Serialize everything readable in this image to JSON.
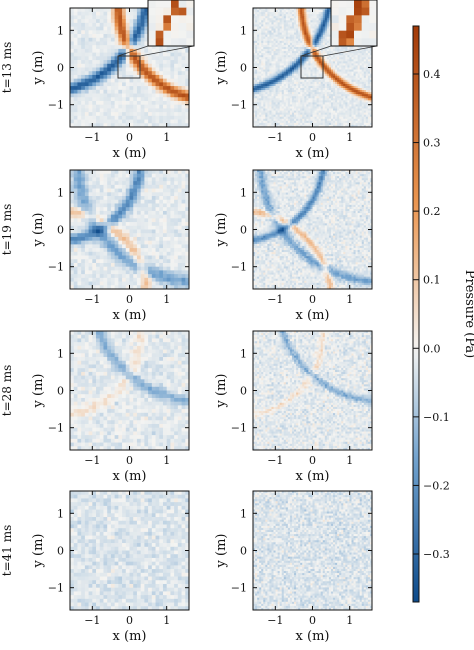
{
  "chart_data": {
    "type": "heatmap",
    "rows": [
      {
        "label": "t=13 ms",
        "inset": true
      },
      {
        "label": "t=19 ms",
        "inset": false
      },
      {
        "label": "t=28 ms",
        "inset": false
      },
      {
        "label": "t=41 ms",
        "inset": false
      }
    ],
    "columns": 2,
    "xlabel": "x (m)",
    "ylabel": "y (m)",
    "xlim": [
      -1.6,
      1.6
    ],
    "ylim": [
      -1.6,
      1.6
    ],
    "xticks": [
      -1,
      0,
      1
    ],
    "yticks": [
      1,
      0,
      -1
    ],
    "xtick_labels": [
      "−1",
      "0",
      "1"
    ],
    "ytick_labels": [
      "1",
      "0",
      "−1"
    ],
    "colorbar": {
      "label": "Pressure (Pa)",
      "range": [
        -0.37,
        0.47
      ],
      "ticks": [
        0.4,
        0.3,
        0.2,
        0.1,
        0.0,
        -0.1,
        -0.2,
        -0.3
      ],
      "tick_labels": [
        "0.4",
        "0.3",
        "0.2",
        "0.1",
        "0.0",
        "−0.1",
        "−0.2",
        "−0.3"
      ],
      "colors": {
        "negative": "#0d4a8a",
        "neutral": "#f4f4f2",
        "positive": "#a23a08"
      }
    }
  }
}
